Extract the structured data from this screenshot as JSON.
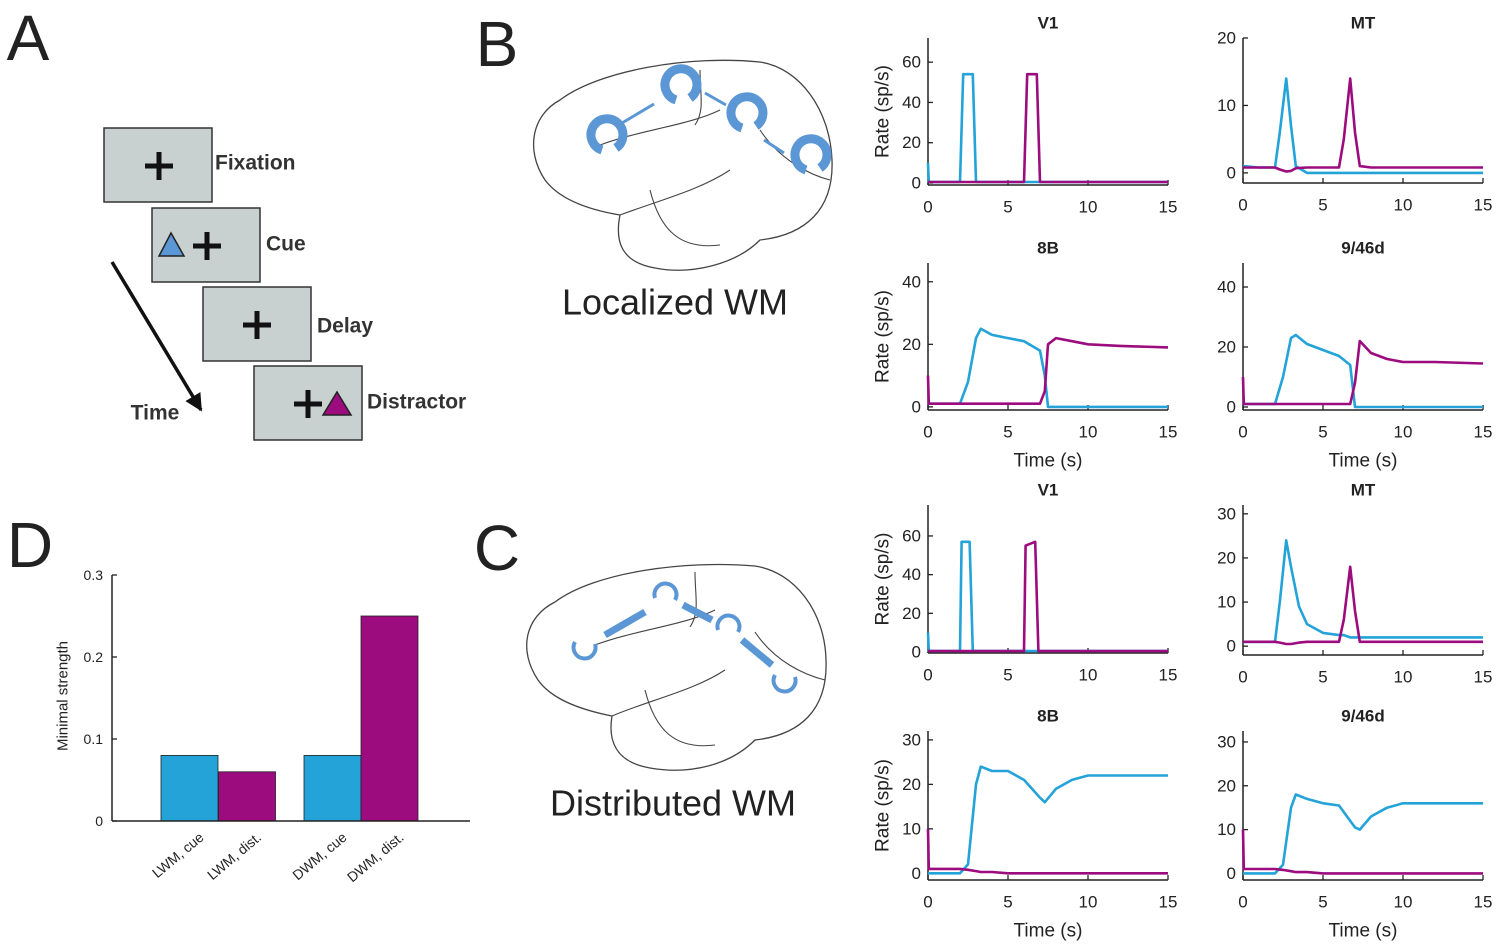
{
  "panel_labels": [
    "A",
    "B",
    "C",
    "D"
  ],
  "task_diagram": {
    "steps": [
      "Fixation",
      "Cue",
      "Delay",
      "Distractor"
    ],
    "time_label": "Time"
  },
  "brain_labels": [
    "Localized WM",
    "Distributed WM"
  ],
  "chart_data": [
    {
      "type": "line",
      "title": "V1",
      "ylabel": "Rate (sp/s)",
      "xlim": [
        0,
        15
      ],
      "xticks": [
        0,
        5,
        10,
        15
      ],
      "ylim": [
        -1,
        72
      ],
      "yticks": [
        0,
        20,
        40,
        60
      ],
      "x": [
        0,
        0.05,
        1,
        2,
        2.2,
        2.8,
        3,
        4,
        6,
        6.2,
        6.8,
        7,
        8,
        10,
        15
      ],
      "series": [
        {
          "color": "#23a3d8",
          "values": [
            10,
            0.5,
            0.5,
            0.5,
            54,
            54,
            0.5,
            0.5,
            0.5,
            0.5,
            0.5,
            0.5,
            0.5,
            0.5,
            0.5
          ]
        },
        {
          "color": "#9c0c7f",
          "values": [
            0.5,
            0.5,
            0.5,
            0.5,
            0.5,
            0.5,
            0.5,
            0.5,
            0.5,
            54,
            54,
            0.5,
            0.5,
            0.5,
            0.5
          ]
        }
      ]
    },
    {
      "type": "line",
      "title": "MT",
      "xlim": [
        0,
        15
      ],
      "xticks": [
        0,
        5,
        10,
        15
      ],
      "ylim": [
        -1.5,
        20
      ],
      "yticks": [
        0,
        10,
        20
      ],
      "x": [
        0,
        1,
        2,
        2.3,
        2.7,
        3,
        3.3,
        4,
        5,
        6,
        6.3,
        6.7,
        7,
        7.3,
        8,
        10,
        12,
        15
      ],
      "series": [
        {
          "color": "#23a3d8",
          "values": [
            1,
            0.8,
            0.8,
            6,
            14,
            7,
            1,
            0,
            0,
            0,
            0,
            0,
            0,
            0,
            0,
            0,
            0,
            0
          ]
        },
        {
          "color": "#9c0c7f",
          "values": [
            0.8,
            0.8,
            0.8,
            0.5,
            0.2,
            0.3,
            0.7,
            0.8,
            0.8,
            0.8,
            5,
            14,
            6,
            1,
            0.8,
            0.8,
            0.8,
            0.8
          ]
        }
      ]
    },
    {
      "type": "line",
      "title": "8B",
      "xlabel": "Time (s)",
      "ylabel": "Rate (sp/s)",
      "xlim": [
        0,
        15
      ],
      "xticks": [
        0,
        5,
        10,
        15
      ],
      "ylim": [
        -1,
        46
      ],
      "yticks": [
        0,
        20,
        40
      ],
      "x": [
        0,
        0.05,
        1,
        2,
        2.5,
        3,
        3.3,
        4,
        5,
        6,
        7,
        7.3,
        7.5,
        8,
        9,
        10,
        12,
        15
      ],
      "series": [
        {
          "color": "#23a3d8",
          "values": [
            1,
            1,
            1,
            1,
            8,
            22,
            25,
            23,
            22,
            21,
            18,
            10,
            0,
            0,
            0,
            0,
            0,
            0
          ]
        },
        {
          "color": "#9c0c7f",
          "values": [
            10,
            1,
            1,
            1,
            1,
            1,
            1,
            1,
            1,
            1,
            1,
            5,
            20,
            22,
            21,
            20,
            19.5,
            19
          ]
        }
      ]
    },
    {
      "type": "line",
      "title": "9/46d",
      "xlabel": "Time (s)",
      "xlim": [
        0,
        15
      ],
      "xticks": [
        0,
        5,
        10,
        15
      ],
      "ylim": [
        -1,
        48
      ],
      "yticks": [
        0,
        20,
        40
      ],
      "x": [
        0,
        0.05,
        1,
        2,
        2.5,
        3,
        3.3,
        4,
        5,
        6,
        6.7,
        7,
        7.3,
        8,
        9,
        10,
        12,
        15
      ],
      "series": [
        {
          "color": "#23a3d8",
          "values": [
            1,
            1,
            1,
            1,
            10,
            23,
            24,
            21,
            19,
            17,
            14,
            0,
            0,
            0,
            0,
            0,
            0,
            0
          ]
        },
        {
          "color": "#9c0c7f",
          "values": [
            10,
            1,
            1,
            1,
            1,
            1,
            1,
            1,
            1,
            1,
            1,
            8,
            22,
            18,
            16,
            15,
            15,
            14.5
          ]
        }
      ]
    },
    {
      "type": "line",
      "title": "V1",
      "ylabel": "Rate (sp/s)",
      "xlim": [
        0,
        15
      ],
      "xticks": [
        0,
        5,
        10,
        15
      ],
      "ylim": [
        -0.5,
        76
      ],
      "yticks": [
        0,
        20,
        40,
        60
      ],
      "x": [
        0,
        0.05,
        1,
        2,
        2.1,
        2.6,
        2.8,
        4,
        6,
        6.1,
        6.7,
        6.9,
        8,
        10,
        15
      ],
      "series": [
        {
          "color": "#23a3d8",
          "values": [
            10,
            0.5,
            0.5,
            0.5,
            57,
            57,
            0.5,
            0.5,
            0.5,
            0.5,
            0.5,
            0.5,
            0.5,
            0.5,
            0.5
          ]
        },
        {
          "color": "#9c0c7f",
          "values": [
            0.5,
            0.5,
            0.5,
            0.5,
            0.5,
            0.5,
            0.5,
            0.5,
            0.5,
            55,
            57,
            0.5,
            0.5,
            0.5,
            0.5
          ]
        }
      ]
    },
    {
      "type": "line",
      "title": "MT",
      "xlim": [
        0,
        15
      ],
      "xticks": [
        0,
        5,
        10,
        15
      ],
      "ylim": [
        -2,
        32
      ],
      "yticks": [
        0,
        10,
        20,
        30
      ],
      "x": [
        0,
        1,
        2,
        2.3,
        2.7,
        3,
        3.5,
        4,
        5,
        6,
        6.3,
        6.7,
        7,
        7.3,
        8,
        10,
        15
      ],
      "series": [
        {
          "color": "#23a3d8",
          "values": [
            1,
            1,
            1,
            10,
            24,
            18,
            9,
            5,
            3,
            2.5,
            2.5,
            2,
            2,
            2,
            2,
            2,
            2
          ]
        },
        {
          "color": "#9c0c7f",
          "values": [
            1,
            1,
            1,
            0.8,
            0.5,
            0.5,
            0.8,
            1,
            1,
            1,
            6,
            18,
            8,
            1,
            1,
            1,
            1
          ]
        }
      ]
    },
    {
      "type": "line",
      "title": "8B",
      "xlabel": "Time (s)",
      "ylabel": "Rate (sp/s)",
      "xlim": [
        0,
        15
      ],
      "xticks": [
        0,
        5,
        10,
        15
      ],
      "ylim": [
        -1.5,
        32
      ],
      "yticks": [
        0,
        10,
        20,
        30
      ],
      "x": [
        0,
        0.05,
        1,
        2,
        2.5,
        3,
        3.3,
        4,
        5,
        6,
        6.5,
        7,
        7.3,
        8,
        9,
        10,
        12,
        15
      ],
      "series": [
        {
          "color": "#23a3d8",
          "values": [
            0,
            0,
            0,
            0,
            2,
            20,
            24,
            23,
            23,
            21,
            19,
            17,
            16,
            19,
            21,
            22,
            22,
            22
          ]
        },
        {
          "color": "#9c0c7f",
          "values": [
            10,
            1,
            1,
            1,
            0.8,
            0.5,
            0.3,
            0.3,
            0,
            0,
            0,
            0,
            0,
            0,
            0,
            0,
            0,
            0
          ]
        }
      ]
    },
    {
      "type": "line",
      "title": "9/46d",
      "xlabel": "Time (s)",
      "xlim": [
        0,
        15
      ],
      "xticks": [
        0,
        5,
        10,
        15
      ],
      "ylim": [
        -1.5,
        32.5
      ],
      "yticks": [
        0,
        10,
        20,
        30
      ],
      "x": [
        0,
        0.05,
        1,
        2,
        2.5,
        3,
        3.3,
        4,
        5,
        6,
        6.5,
        7,
        7.3,
        8,
        9,
        10,
        12,
        15
      ],
      "series": [
        {
          "color": "#23a3d8",
          "values": [
            0,
            0,
            0,
            0,
            2,
            15,
            18,
            17,
            16,
            15.5,
            13,
            10.5,
            10,
            13,
            15,
            16,
            16,
            16
          ]
        },
        {
          "color": "#9c0c7f",
          "values": [
            10,
            1,
            1,
            1,
            0.8,
            0.5,
            0.3,
            0.3,
            0,
            0,
            0,
            0,
            0,
            0,
            0,
            0,
            0,
            0
          ]
        }
      ]
    },
    {
      "type": "bar",
      "ylabel": "Minimal strength",
      "categories": [
        "LWM, cue",
        "LWM, dist.",
        "DWM, cue",
        "DWM, dist."
      ],
      "values": [
        0.08,
        0.06,
        0.08,
        0.25
      ],
      "colors": [
        "#23a3d8",
        "#9c0c7f",
        "#23a3d8",
        "#9c0c7f"
      ],
      "ylim": [
        0,
        0.3
      ],
      "yticks": [
        0,
        0.1,
        0.2,
        0.3
      ]
    }
  ]
}
